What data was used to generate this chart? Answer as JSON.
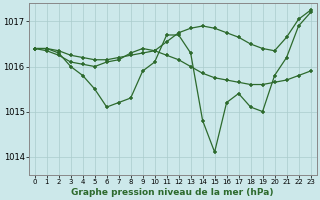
{
  "background_color": "#cce8ea",
  "grid_color": "#aacccc",
  "line_color": "#2d6a2d",
  "title": "Graphe pression niveau de la mer (hPa)",
  "ylabel_ticks": [
    1014,
    1015,
    1016,
    1017
  ],
  "xlim": [
    -0.5,
    23.5
  ],
  "ylim": [
    1013.6,
    1017.4
  ],
  "x_hours": [
    0,
    1,
    2,
    3,
    4,
    5,
    6,
    7,
    8,
    9,
    10,
    11,
    12,
    13,
    14,
    15,
    16,
    17,
    18,
    19,
    20,
    21,
    22,
    23
  ],
  "series": [
    [
      1016.4,
      1016.4,
      1016.3,
      1016.0,
      1015.8,
      1015.5,
      1015.1,
      1015.2,
      1015.3,
      1015.9,
      1016.1,
      1016.7,
      1016.7,
      1016.3,
      1014.8,
      1014.1,
      1015.2,
      1015.4,
      1015.1,
      1015.0,
      1015.8,
      1016.2,
      1016.9,
      1017.2
    ],
    [
      1016.4,
      1016.35,
      1016.25,
      1016.1,
      1016.05,
      1016.0,
      1016.1,
      1016.15,
      1016.3,
      1016.4,
      1016.35,
      1016.25,
      1016.15,
      1016.0,
      1015.85,
      1015.75,
      1015.7,
      1015.65,
      1015.6,
      1015.6,
      1015.65,
      1015.7,
      1015.8,
      1015.9
    ],
    [
      1016.4,
      1016.4,
      1016.35,
      1016.25,
      1016.2,
      1016.15,
      1016.15,
      1016.2,
      1016.25,
      1016.3,
      1016.35,
      1016.55,
      1016.75,
      1016.85,
      1016.9,
      1016.85,
      1016.75,
      1016.65,
      1016.5,
      1016.4,
      1016.35,
      1016.65,
      1017.05,
      1017.25
    ]
  ]
}
